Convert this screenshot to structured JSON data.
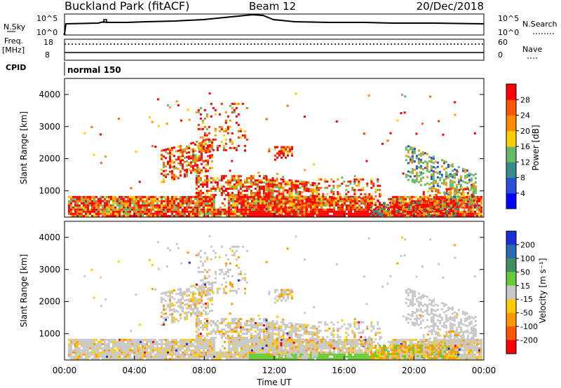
{
  "header": {
    "station": "Buckland Park (fitACF)",
    "beam": "Beam 12",
    "date": "20/Dec/2018"
  },
  "summary": {
    "nsky_label": "N.Sky",
    "nsky_ticks": [
      "10^5",
      "10^0"
    ],
    "nsearch_label": "N.Search",
    "nsearch_ticks": [
      "10^5",
      "10^0"
    ],
    "freq_label": "Freq.",
    "freq_unit": "[MHz]",
    "freq_ticks": [
      "18",
      "8"
    ],
    "nave_label": "Nave",
    "nave_ticks": [
      "60",
      "0"
    ],
    "cpid_label": "CPID",
    "cpid_mode": "normal 150"
  },
  "chart_data": [
    {
      "type": "heatmap",
      "panel": "power",
      "xlabel": "",
      "ylabel": "Slant Range [km]",
      "xlim_hours": [
        0,
        24
      ],
      "ylim_km": [
        180,
        4500
      ],
      "yticks": [
        "1000",
        "2000",
        "3000",
        "4000"
      ],
      "colorbar_label": "Power [dB]",
      "colorbar_ticks": [
        "4",
        "8",
        "12",
        "16",
        "20",
        "24",
        "28"
      ],
      "colorbar_colors": [
        "#0000ff",
        "#2a4fd6",
        "#3a8a8a",
        "#66bb66",
        "#ffcc00",
        "#ff8c00",
        "#ff5500",
        "#ff0000"
      ]
    },
    {
      "type": "heatmap",
      "panel": "velocity",
      "xlabel": "Time UT",
      "ylabel": "Slant Range [km]",
      "xlim_hours": [
        0,
        24
      ],
      "ylim_km": [
        180,
        4500
      ],
      "xticks": [
        "00:00",
        "04:00",
        "08:00",
        "12:00",
        "16:00",
        "20:00",
        "00:00"
      ],
      "yticks": [
        "1000",
        "2000",
        "3000",
        "4000"
      ],
      "colorbar_label": "Velocity [m s⁻¹]",
      "colorbar_ticks": [
        "200",
        "100",
        "50",
        "15",
        "-15",
        "-50",
        "-100",
        "-200"
      ],
      "colorbar_colors": [
        "#1a2fd6",
        "#2a6bb0",
        "#3f8f5f",
        "#66cc33",
        "#c8c8c8",
        "#ffcc00",
        "#ff9900",
        "#ff5500",
        "#ff0000"
      ]
    }
  ]
}
